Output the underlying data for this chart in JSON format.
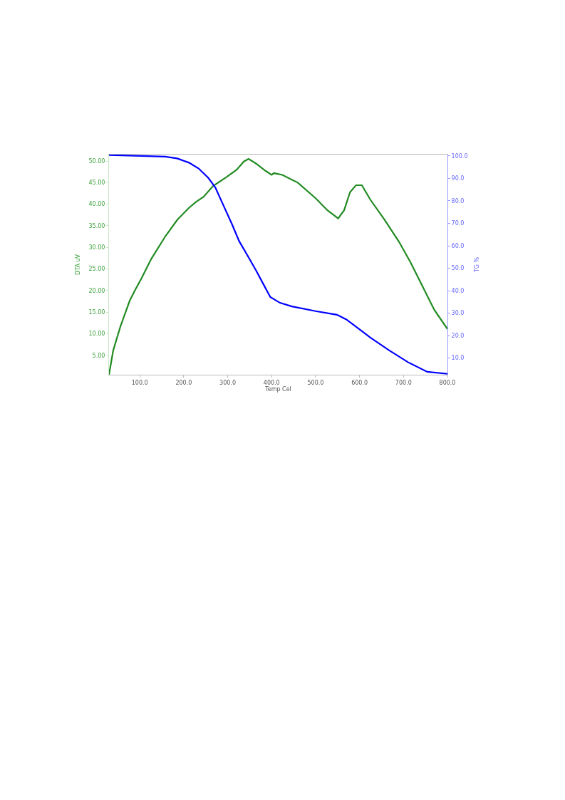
{
  "chart_data": {
    "type": "line",
    "xlabel": "Temp Cel",
    "ylabel": "DTA uV",
    "y2label": "TG %",
    "xlim": [
      30,
      800
    ],
    "xticks": [
      {
        "value": 100,
        "label": "100.0"
      },
      {
        "value": 200,
        "label": "200.0"
      },
      {
        "value": 300,
        "label": "300.0"
      },
      {
        "value": 400,
        "label": "400.0"
      },
      {
        "value": 500,
        "label": "500.0"
      },
      {
        "value": 600,
        "label": "600.0"
      },
      {
        "value": 700,
        "label": "700.0"
      },
      {
        "value": 800,
        "label": "800.0"
      }
    ],
    "ylim": [
      0.5,
      51.5
    ],
    "yticks": [
      {
        "value": 5,
        "label": "5.00"
      },
      {
        "value": 10,
        "label": "10.00"
      },
      {
        "value": 15,
        "label": "15.00"
      },
      {
        "value": 20,
        "label": "20.00"
      },
      {
        "value": 25,
        "label": "25.00"
      },
      {
        "value": 30,
        "label": "30.00"
      },
      {
        "value": 35,
        "label": "35.00"
      },
      {
        "value": 40,
        "label": "40.00"
      },
      {
        "value": 45,
        "label": "45.00"
      },
      {
        "value": 50,
        "label": "50.00"
      }
    ],
    "y2lim": [
      2.6,
      100.6
    ],
    "y2ticks": [
      {
        "value": 10,
        "label": "10.0"
      },
      {
        "value": 20,
        "label": "20.0"
      },
      {
        "value": 30,
        "label": "30.0"
      },
      {
        "value": 40,
        "label": "40.0"
      },
      {
        "value": 50,
        "label": "50.0"
      },
      {
        "value": 60,
        "label": "60.0"
      },
      {
        "value": 70,
        "label": "70.0"
      },
      {
        "value": 80,
        "label": "80.0"
      },
      {
        "value": 90,
        "label": "90.0"
      },
      {
        "value": 100,
        "label": "100.0"
      }
    ],
    "grid": false,
    "marker": "none",
    "line_style": "solid",
    "series": [
      {
        "color": "#228b22",
        "x": [
          30,
          39.5,
          55.7,
          77.3,
          90.8,
          104.3,
          126,
          158.4,
          185.4,
          212.4,
          228.6,
          244.9,
          266.5,
          298.9,
          320.5,
          336.8,
          347.6,
          364.9,
          386.5,
          400,
          405.4,
          424.3,
          459.5,
          500,
          527,
          551.4,
          564.9,
          578.4,
          591.9,
          605.4,
          624.3,
          656.8,
          689.2,
          716.2,
          743.2,
          770.3,
          800
        ],
        "values": [
          0.5,
          6.1,
          11.6,
          17.7,
          20.4,
          22.9,
          27.3,
          32.6,
          36.4,
          39.2,
          40.6,
          41.7,
          44.2,
          46.4,
          48.0,
          49.9,
          50.5,
          49.4,
          47.7,
          46.8,
          47.2,
          46.8,
          45.0,
          41.4,
          38.6,
          36.7,
          38.6,
          42.8,
          44.4,
          44.4,
          41.1,
          36.4,
          31.4,
          26.5,
          21.0,
          15.5,
          11.1
        ]
      },
      {
        "color": "#0000ff",
        "axis": "y2",
        "x": [
          30,
          104.3,
          158,
          185,
          212,
          234,
          256,
          272,
          288,
          310,
          326,
          348,
          364.9,
          381,
          397,
          419,
          446,
          500,
          548.6,
          570,
          592,
          624,
          667.6,
          710.8,
          754,
          800
        ],
        "values": [
          100.4,
          100,
          99.7,
          98.9,
          97.0,
          94.4,
          90.2,
          85.9,
          79.0,
          69.5,
          62.1,
          54.7,
          48.9,
          43.0,
          37.2,
          34.6,
          33.0,
          30.9,
          29.3,
          27.2,
          24.0,
          19.2,
          13.4,
          8.1,
          3.9,
          3.0
        ]
      }
    ]
  }
}
